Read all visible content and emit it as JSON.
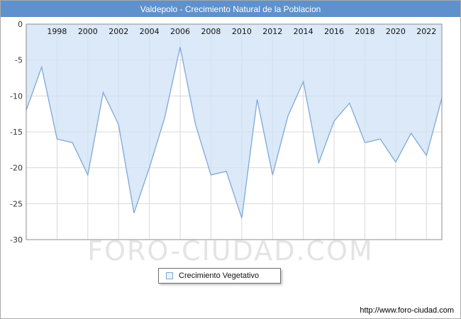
{
  "title": "Valdepolo - Crecimiento Natural de la Poblacion",
  "watermark": "FORO-CIUDAD.COM",
  "footer_url": "http://www.foro-ciudad.com",
  "legend": {
    "label": "Crecimiento Vegetativo"
  },
  "colors": {
    "header_bg": "#5f91cc",
    "line": "#7fa8d9",
    "fill": "#cfe2f6",
    "grid": "#d9d9d9",
    "plot_border": "#8c8c8c"
  },
  "chart_data": {
    "type": "area",
    "title": "Valdepolo - Crecimiento Natural de la Poblacion",
    "legend_position": "bottom",
    "grid": true,
    "xlabel": "",
    "ylabel": "",
    "ylim": [
      -30,
      0
    ],
    "yticks": [
      0,
      -5,
      -10,
      -15,
      -20,
      -25,
      -30
    ],
    "xticks": [
      1998,
      2000,
      2002,
      2004,
      2006,
      2008,
      2010,
      2012,
      2014,
      2016,
      2018,
      2020,
      2022
    ],
    "series": [
      {
        "name": "Crecimiento Vegetativo",
        "x": [
          1996,
          1997,
          1998,
          1999,
          2000,
          2001,
          2002,
          2003,
          2004,
          2005,
          2006,
          2007,
          2008,
          2009,
          2010,
          2011,
          2012,
          2013,
          2014,
          2015,
          2016,
          2017,
          2018,
          2019,
          2020,
          2021,
          2022,
          2023
        ],
        "values": [
          -12,
          -6,
          -16,
          -16.5,
          -21,
          -9.5,
          -14,
          -26.3,
          -20,
          -13,
          -3.2,
          -14,
          -21,
          -20.5,
          -27,
          -10.5,
          -21,
          -12.8,
          -8,
          -19.3,
          -13.5,
          -11,
          -16.5,
          -16,
          -19.2,
          -15.2,
          -18.3,
          -10.3
        ]
      }
    ]
  }
}
